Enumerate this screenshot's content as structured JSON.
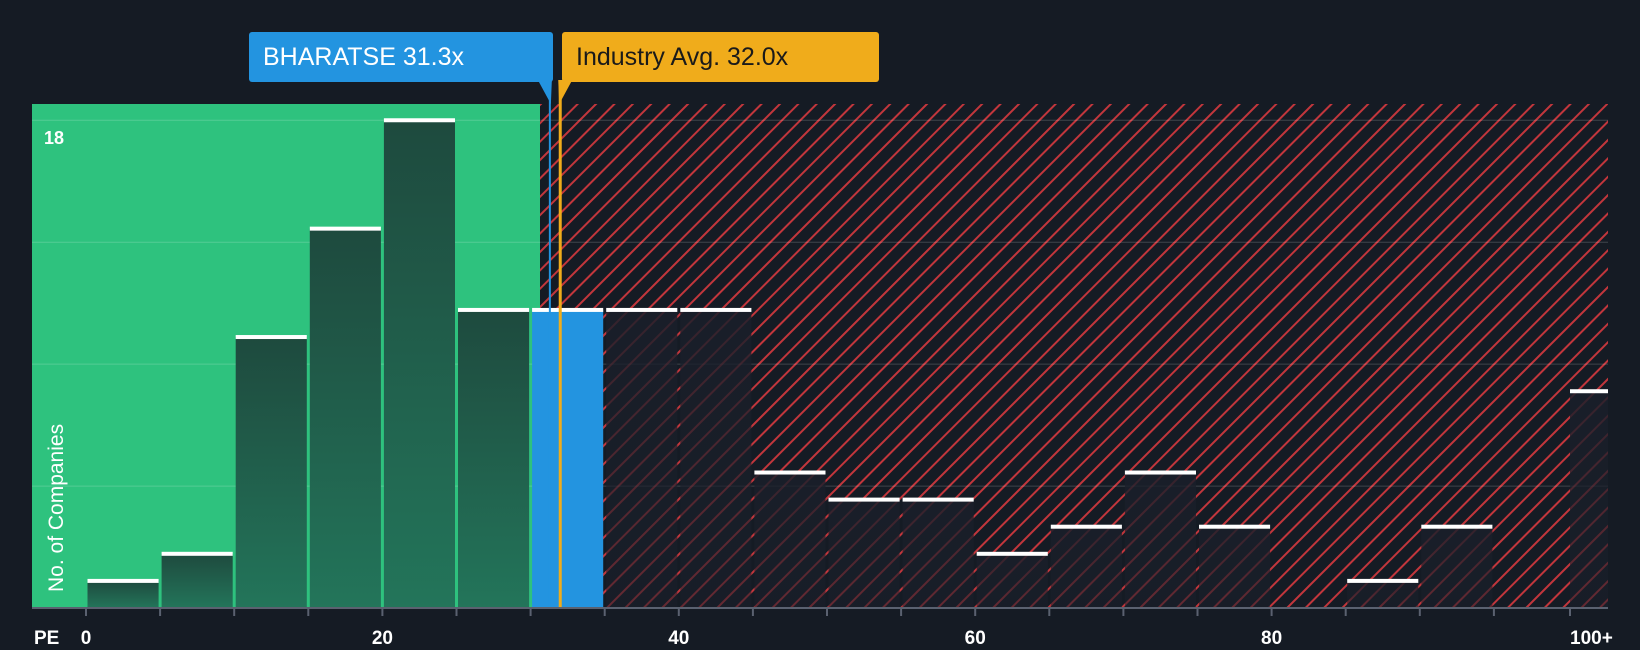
{
  "chart_data": {
    "type": "bar",
    "title": "",
    "xlabel": "PE",
    "ylabel": "No. of Companies",
    "y_tick_label": "18",
    "x_ticks": [
      "0",
      "20",
      "40",
      "60",
      "80",
      "100+"
    ],
    "ylim": [
      0,
      18.6
    ],
    "bin_width": 5,
    "bins": [
      {
        "start": 0,
        "value": 1
      },
      {
        "start": 5,
        "value": 2
      },
      {
        "start": 10,
        "value": 10
      },
      {
        "start": 15,
        "value": 14
      },
      {
        "start": 20,
        "value": 18
      },
      {
        "start": 25,
        "value": 11
      },
      {
        "start": 30,
        "value": 11
      },
      {
        "start": 35,
        "value": 11
      },
      {
        "start": 40,
        "value": 11
      },
      {
        "start": 45,
        "value": 5
      },
      {
        "start": 50,
        "value": 4
      },
      {
        "start": 55,
        "value": 4
      },
      {
        "start": 60,
        "value": 2
      },
      {
        "start": 65,
        "value": 3
      },
      {
        "start": 70,
        "value": 5
      },
      {
        "start": 75,
        "value": 3
      },
      {
        "start": 80,
        "value": 0
      },
      {
        "start": 85,
        "value": 1
      },
      {
        "start": 90,
        "value": 3
      },
      {
        "start": 95,
        "value": 0
      },
      {
        "start": 100,
        "value": 8
      }
    ],
    "highlight_bin_start": 30,
    "company": {
      "name": "BHARATSE",
      "pe": 31.3,
      "label": "BHARATSE 31.3x"
    },
    "industry": {
      "pe": 32.0,
      "label": "Industry Avg. 32.0x"
    },
    "colors": {
      "background": "#151b24",
      "undervalued_zone": "#2ec27e",
      "overvalued_hatch": "#c2363c",
      "bar_fill": "#1e4a3e",
      "highlight_bar": "#2394e0",
      "bar_cap": "#ffffff",
      "company_marker": "#2394e0",
      "industry_marker": "#f0ac1b"
    }
  }
}
